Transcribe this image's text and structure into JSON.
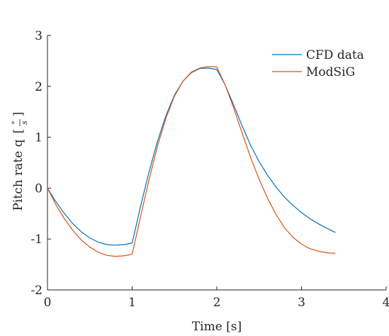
{
  "chart_data": {
    "type": "line",
    "xlabel": "Time [s]",
    "ylabel_text": "Pitch rate q",
    "ylabel_unit_top": "°",
    "ylabel_unit_bottom": "s",
    "xlim": [
      0,
      4
    ],
    "ylim": [
      -2,
      3
    ],
    "xticks": [
      0,
      1,
      2,
      3,
      4
    ],
    "xtick_labels": [
      "0",
      "1",
      "2",
      "3",
      "4"
    ],
    "yticks": [
      -2,
      -1,
      0,
      1,
      2,
      3
    ],
    "ytick_labels": [
      "-2",
      "-1",
      "0",
      "1",
      "2",
      "3"
    ],
    "grid": false,
    "legend_position": "top-right",
    "series": [
      {
        "name": "CFD data",
        "color": "#0072BD",
        "x": [
          0,
          0.1,
          0.2,
          0.3,
          0.4,
          0.5,
          0.6,
          0.7,
          0.8,
          0.9,
          1.0,
          1.1,
          1.2,
          1.3,
          1.4,
          1.5,
          1.6,
          1.7,
          1.8,
          1.9,
          2.0,
          2.1,
          2.2,
          2.3,
          2.4,
          2.5,
          2.6,
          2.7,
          2.8,
          2.9,
          3.0,
          3.1,
          3.2,
          3.3,
          3.4
        ],
        "y": [
          0,
          -0.27,
          -0.5,
          -0.7,
          -0.86,
          -0.98,
          -1.06,
          -1.11,
          -1.12,
          -1.11,
          -1.08,
          -0.35,
          0.32,
          0.92,
          1.43,
          1.83,
          2.1,
          2.27,
          2.35,
          2.36,
          2.33,
          2.02,
          1.63,
          1.22,
          0.84,
          0.52,
          0.25,
          0.02,
          -0.18,
          -0.34,
          -0.48,
          -0.6,
          -0.7,
          -0.79,
          -0.87
        ]
      },
      {
        "name": "ModSiG",
        "color": "#D95319",
        "x": [
          0,
          0.1,
          0.2,
          0.3,
          0.4,
          0.5,
          0.6,
          0.7,
          0.8,
          0.9,
          1.0,
          1.1,
          1.2,
          1.3,
          1.4,
          1.5,
          1.6,
          1.7,
          1.8,
          1.9,
          2.0,
          2.1,
          2.2,
          2.3,
          2.4,
          2.5,
          2.6,
          2.7,
          2.8,
          2.9,
          3.0,
          3.1,
          3.2,
          3.3,
          3.4
        ],
        "y": [
          0,
          -0.33,
          -0.6,
          -0.83,
          -1.02,
          -1.16,
          -1.26,
          -1.32,
          -1.34,
          -1.33,
          -1.3,
          -0.55,
          0.17,
          0.83,
          1.38,
          1.81,
          2.1,
          2.28,
          2.36,
          2.39,
          2.38,
          2.02,
          1.57,
          1.08,
          0.6,
          0.17,
          -0.2,
          -0.52,
          -0.78,
          -0.97,
          -1.1,
          -1.19,
          -1.24,
          -1.27,
          -1.28
        ]
      }
    ]
  }
}
